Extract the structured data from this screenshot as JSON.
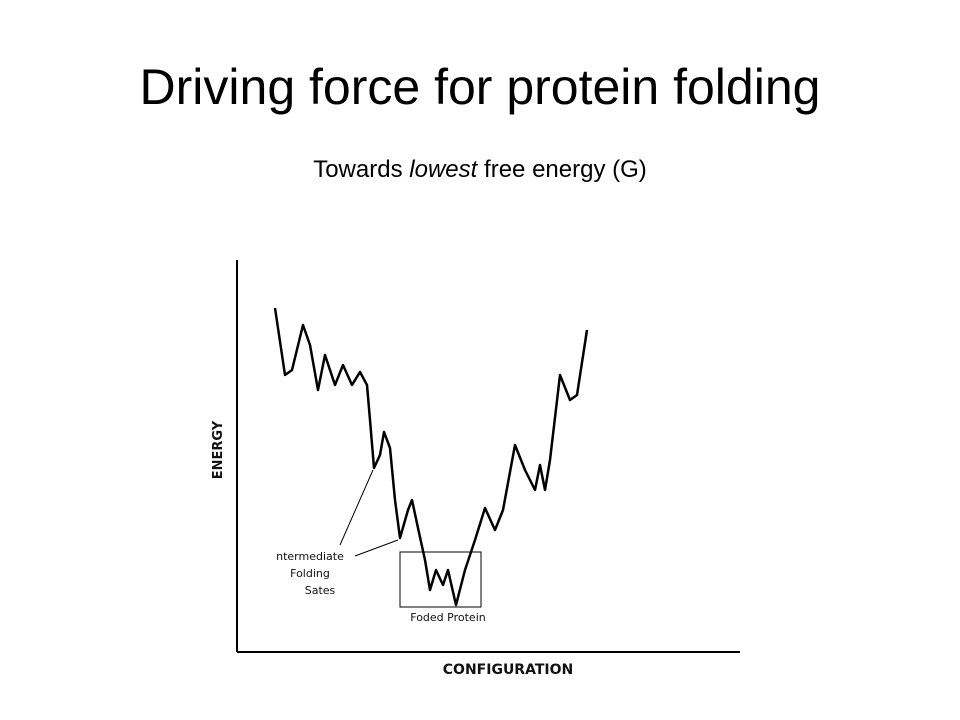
{
  "header": {
    "title": "Driving force for protein folding",
    "subtitle": [
      "Towards",
      "lowest",
      "free energy (G)"
    ]
  },
  "diagram": {
    "y_axis_label": "ENERGY",
    "x_axis_label": "CONFIGURATION",
    "intermediate_label": [
      "ntermediate",
      "Folding",
      "Sates"
    ],
    "folded_label": "Foded Protein"
  }
}
